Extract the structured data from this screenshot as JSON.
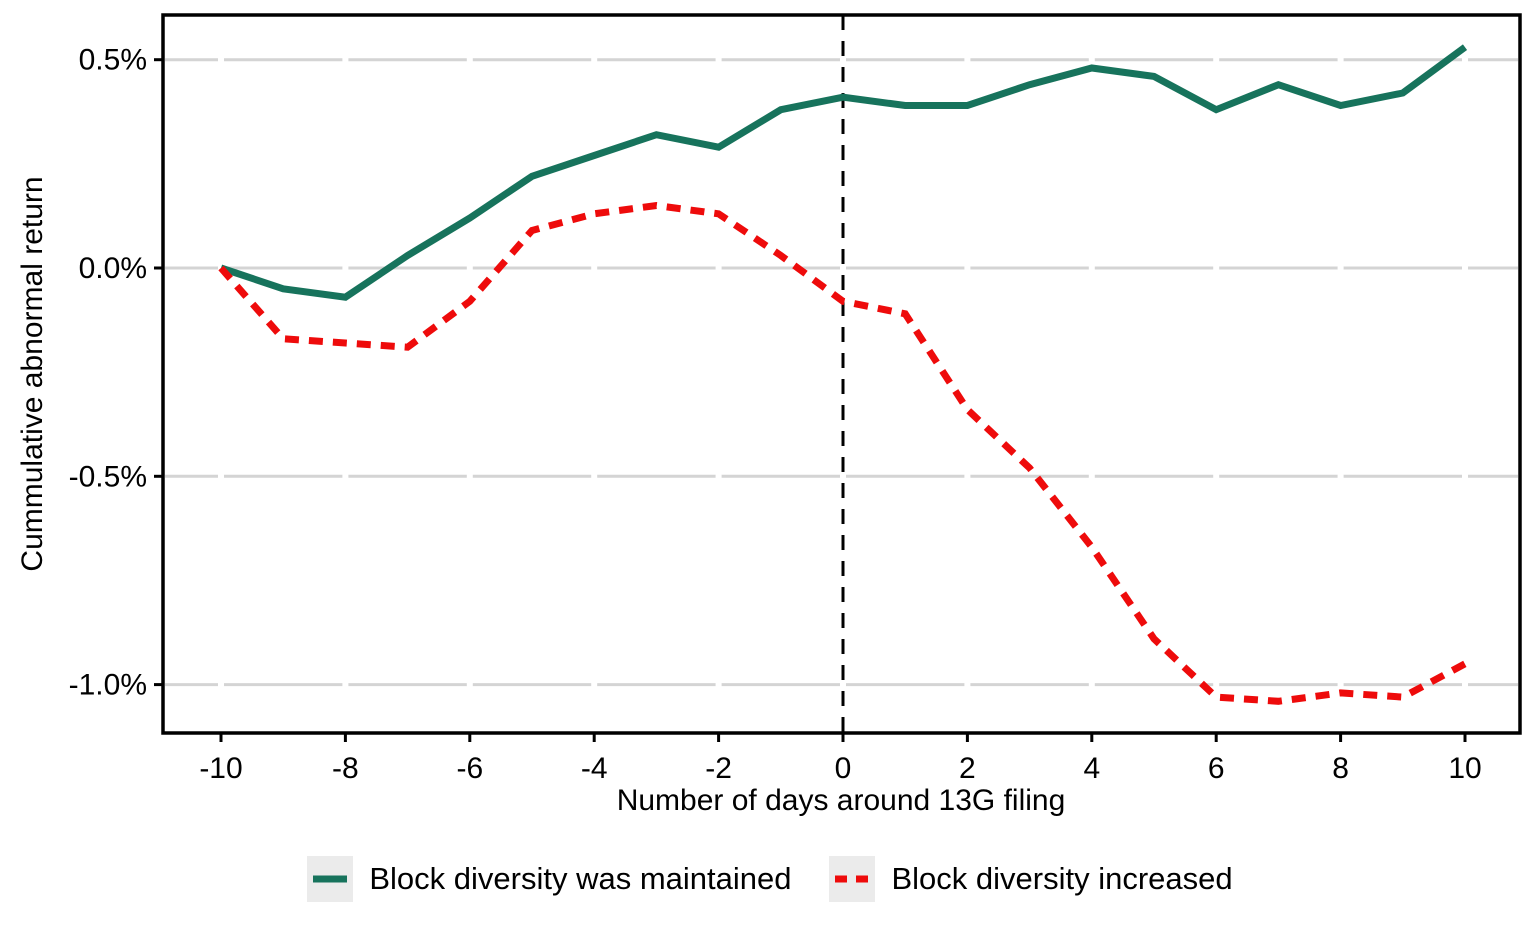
{
  "chart_data": {
    "type": "line",
    "title": "",
    "xlabel": "Number of days around 13G filing",
    "ylabel": "Cummulative abnormal return",
    "x": [
      -10,
      -9,
      -8,
      -7,
      -6,
      -5,
      -4,
      -3,
      -2,
      -1,
      0,
      1,
      2,
      3,
      4,
      5,
      6,
      7,
      8,
      9,
      10
    ],
    "series": [
      {
        "name": "Block diversity was maintained",
        "line_style": "solid",
        "color": "#17735C",
        "values_pct": [
          0.0,
          -0.05,
          -0.07,
          0.03,
          0.12,
          0.22,
          0.27,
          0.32,
          0.29,
          0.38,
          0.41,
          0.39,
          0.39,
          0.44,
          0.48,
          0.46,
          0.38,
          0.44,
          0.39,
          0.42,
          0.53
        ]
      },
      {
        "name": "Block diversity increased",
        "line_style": "dashed",
        "color": "#EE0B0B",
        "values_pct": [
          0.0,
          -0.17,
          -0.18,
          -0.19,
          -0.08,
          0.09,
          0.13,
          0.15,
          0.13,
          0.03,
          -0.08,
          -0.11,
          -0.34,
          -0.48,
          -0.67,
          -0.89,
          -1.03,
          -1.04,
          -1.02,
          -1.03,
          -0.95
        ]
      }
    ],
    "x_ticks": [
      -10,
      -8,
      -6,
      -4,
      -2,
      0,
      2,
      4,
      6,
      8,
      10
    ],
    "y_ticks": [
      {
        "value": 0.5,
        "label": "0.5%"
      },
      {
        "value": 0.0,
        "label": "0.0%"
      },
      {
        "value": -0.5,
        "label": "-0.5%"
      },
      {
        "value": -1.0,
        "label": "-1.0%"
      }
    ],
    "xlim": [
      -10.9,
      10.9
    ],
    "ylim_pct": [
      -1.12,
      0.61
    ],
    "reference_line": {
      "x": 0,
      "style": "dashed",
      "color": "#000000"
    },
    "grid": "horizontal major gridlines with gaps at x tick positions",
    "legend_position": "bottom-center",
    "colors": {
      "gridline": "#D4D4D4",
      "axis_border": "#000000",
      "legend_key_bg": "#EBEBEB",
      "background": "#FFFFFF",
      "text": "#000000"
    }
  }
}
